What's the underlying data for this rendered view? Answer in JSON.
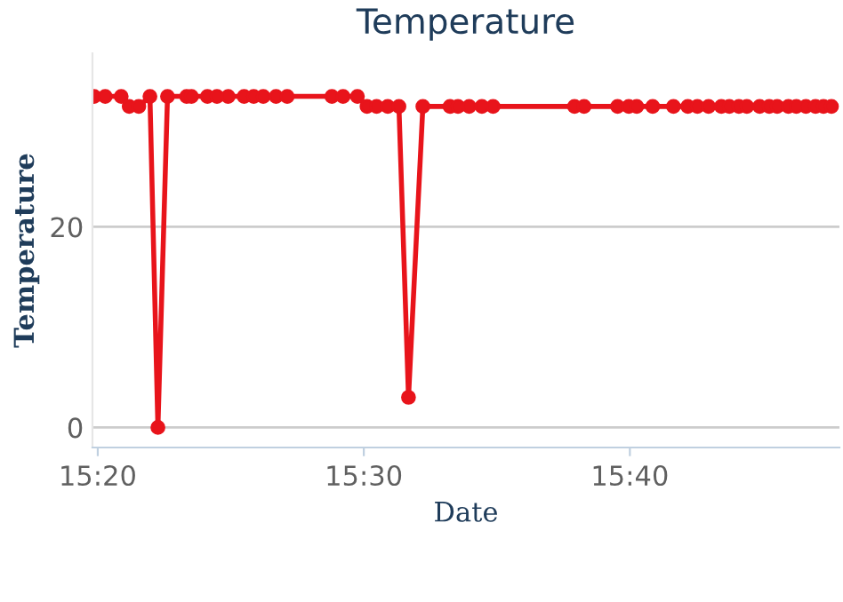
{
  "chart_data": {
    "type": "line",
    "title": "Temperature",
    "xlabel": "Date",
    "ylabel": "Temperature",
    "x": [
      15.331,
      15.338,
      15.348,
      15.353,
      15.359,
      15.366,
      15.371,
      15.377,
      15.389,
      15.392,
      15.402,
      15.408,
      15.415,
      15.425,
      15.431,
      15.437,
      15.445,
      15.452,
      15.48,
      15.487,
      15.496,
      15.502,
      15.508,
      15.515,
      15.522,
      15.528,
      15.537,
      15.554,
      15.559,
      15.566,
      15.574,
      15.581,
      15.632,
      15.638,
      15.659,
      15.666,
      15.671,
      15.681,
      15.694,
      15.703,
      15.709,
      15.716,
      15.724,
      15.729,
      15.735,
      15.74,
      15.748,
      15.754,
      15.759,
      15.766,
      15.771,
      15.777,
      15.783,
      15.788,
      15.793
    ],
    "series": [
      {
        "color": "#e8141b",
        "values": [
          33,
          33,
          33,
          32,
          32,
          33,
          0,
          33,
          33,
          33,
          33,
          33,
          33,
          33,
          33,
          33,
          33,
          33,
          33,
          33,
          33,
          32,
          32,
          32,
          32,
          3,
          32,
          32,
          32,
          32,
          32,
          32,
          32,
          32,
          32,
          32,
          32,
          32,
          32,
          32,
          32,
          32,
          32,
          32,
          32,
          32,
          32,
          32,
          32,
          32,
          32,
          32,
          32,
          32,
          32
        ]
      }
    ],
    "xlim": [
      15.33,
      15.798
    ],
    "xticks": [
      {
        "value": 15.3333,
        "label": "15:20"
      },
      {
        "value": 15.5,
        "label": "15:30"
      },
      {
        "value": 15.6667,
        "label": "15:40"
      }
    ],
    "ylim": [
      -2,
      37.3
    ],
    "yticks": [
      0,
      20
    ],
    "grid": "y",
    "marker": "circle",
    "line_style": "solid",
    "legend": false
  }
}
